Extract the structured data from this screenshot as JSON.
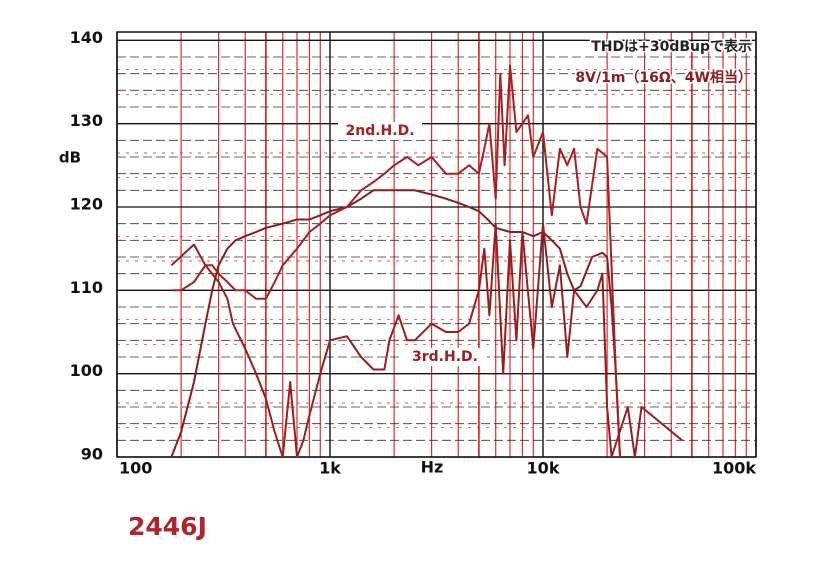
{
  "chart_data": {
    "type": "line",
    "title": "2446J",
    "x_label": "Hz",
    "y_label": "dB",
    "annotations": [
      "THDは+30dBupで表示",
      "8V/1m（16Ω、4W相当）"
    ],
    "log_x": true,
    "grid": true,
    "xlim": [
      100,
      100000
    ],
    "ylim": [
      90,
      141
    ],
    "xticks": [
      100,
      {
        "value": 1000,
        "label": "1k"
      },
      {
        "value": 10000,
        "label": "10k"
      },
      {
        "value": 100000,
        "label": "100k"
      }
    ],
    "yticks": [
      90,
      100,
      110,
      120,
      130,
      140
    ],
    "series": [
      {
        "color": "#8a1c1c",
        "x": [
          180,
          200,
          230,
          260,
          280,
          300,
          330,
          360,
          400,
          450,
          500,
          600,
          700,
          800,
          900,
          1000,
          1200,
          1400,
          1600,
          1800,
          2000,
          2500,
          3000,
          3500,
          4000,
          4500,
          5000,
          5500,
          6000,
          7000,
          8000,
          9000,
          10000,
          11000,
          12000,
          13000,
          14000,
          15000,
          17000,
          19000,
          20000,
          21000,
          22000,
          23000
        ],
        "values": [
          90,
          93,
          99,
          106,
          110,
          113,
          115,
          116,
          116.5,
          117,
          117.5,
          118,
          118.5,
          118.5,
          119,
          119.5,
          120,
          121,
          122,
          122,
          122,
          122,
          121.5,
          121,
          120.5,
          120,
          119.5,
          118.5,
          117.5,
          117,
          117,
          116.5,
          117,
          116,
          115,
          112,
          110,
          110.5,
          114,
          114.5,
          114,
          108,
          100,
          90
        ]
      },
      {
        "name": "2nd.H.D.",
        "color": "#a82020",
        "x": [
          180,
          200,
          230,
          260,
          280,
          300,
          330,
          360,
          400,
          450,
          500,
          550,
          600,
          700,
          800,
          900,
          1000,
          1200,
          1400,
          1600,
          1800,
          2000,
          2300,
          2600,
          3000,
          3500,
          4000,
          4500,
          5000,
          5300,
          5600,
          6000,
          6300,
          6600,
          7000,
          7500,
          8000,
          8500,
          9000,
          10000,
          11000,
          12000,
          13000,
          14000,
          15000,
          16000,
          18000,
          20000,
          22000,
          23000
        ],
        "values": [
          110,
          110,
          111,
          113,
          113,
          112,
          111,
          110,
          110,
          109,
          109,
          111,
          113,
          115,
          117,
          118,
          119,
          120,
          122,
          123,
          124,
          125,
          126,
          125,
          126,
          124,
          124,
          125,
          124,
          127,
          130,
          121,
          136,
          125,
          137,
          129,
          130,
          131,
          126,
          129,
          119,
          127,
          125,
          127,
          120,
          118,
          127,
          126,
          100,
          90
        ]
      },
      {
        "name": "3rd.H.D.",
        "color": "#9a1e1e",
        "x": [
          180,
          230,
          260,
          300,
          330,
          350,
          400,
          450,
          500,
          550,
          600,
          650,
          700,
          750,
          800,
          900,
          1000,
          1200,
          1400,
          1600,
          1800,
          1900,
          2100,
          2300,
          2500,
          3000,
          3500,
          4000,
          4500,
          5000,
          5300,
          5600,
          6000,
          6500,
          7000,
          7500,
          8000,
          9000,
          10000,
          11000,
          12000,
          13000,
          14000,
          16000,
          18000,
          19000,
          20000,
          21000,
          25000,
          27000,
          29000,
          45000
        ],
        "values": [
          113,
          115.5,
          113,
          111,
          109,
          106,
          103,
          100,
          97,
          93,
          90,
          99,
          90,
          92,
          95,
          100,
          104,
          104.5,
          102,
          100.5,
          100.5,
          104,
          107,
          104,
          104,
          106,
          105,
          105,
          106,
          110,
          115,
          107,
          118,
          100,
          116,
          104,
          117,
          103,
          118,
          108,
          113,
          102,
          110,
          108,
          110,
          112,
          96,
          90,
          96,
          90,
          96,
          92
        ]
      }
    ]
  }
}
